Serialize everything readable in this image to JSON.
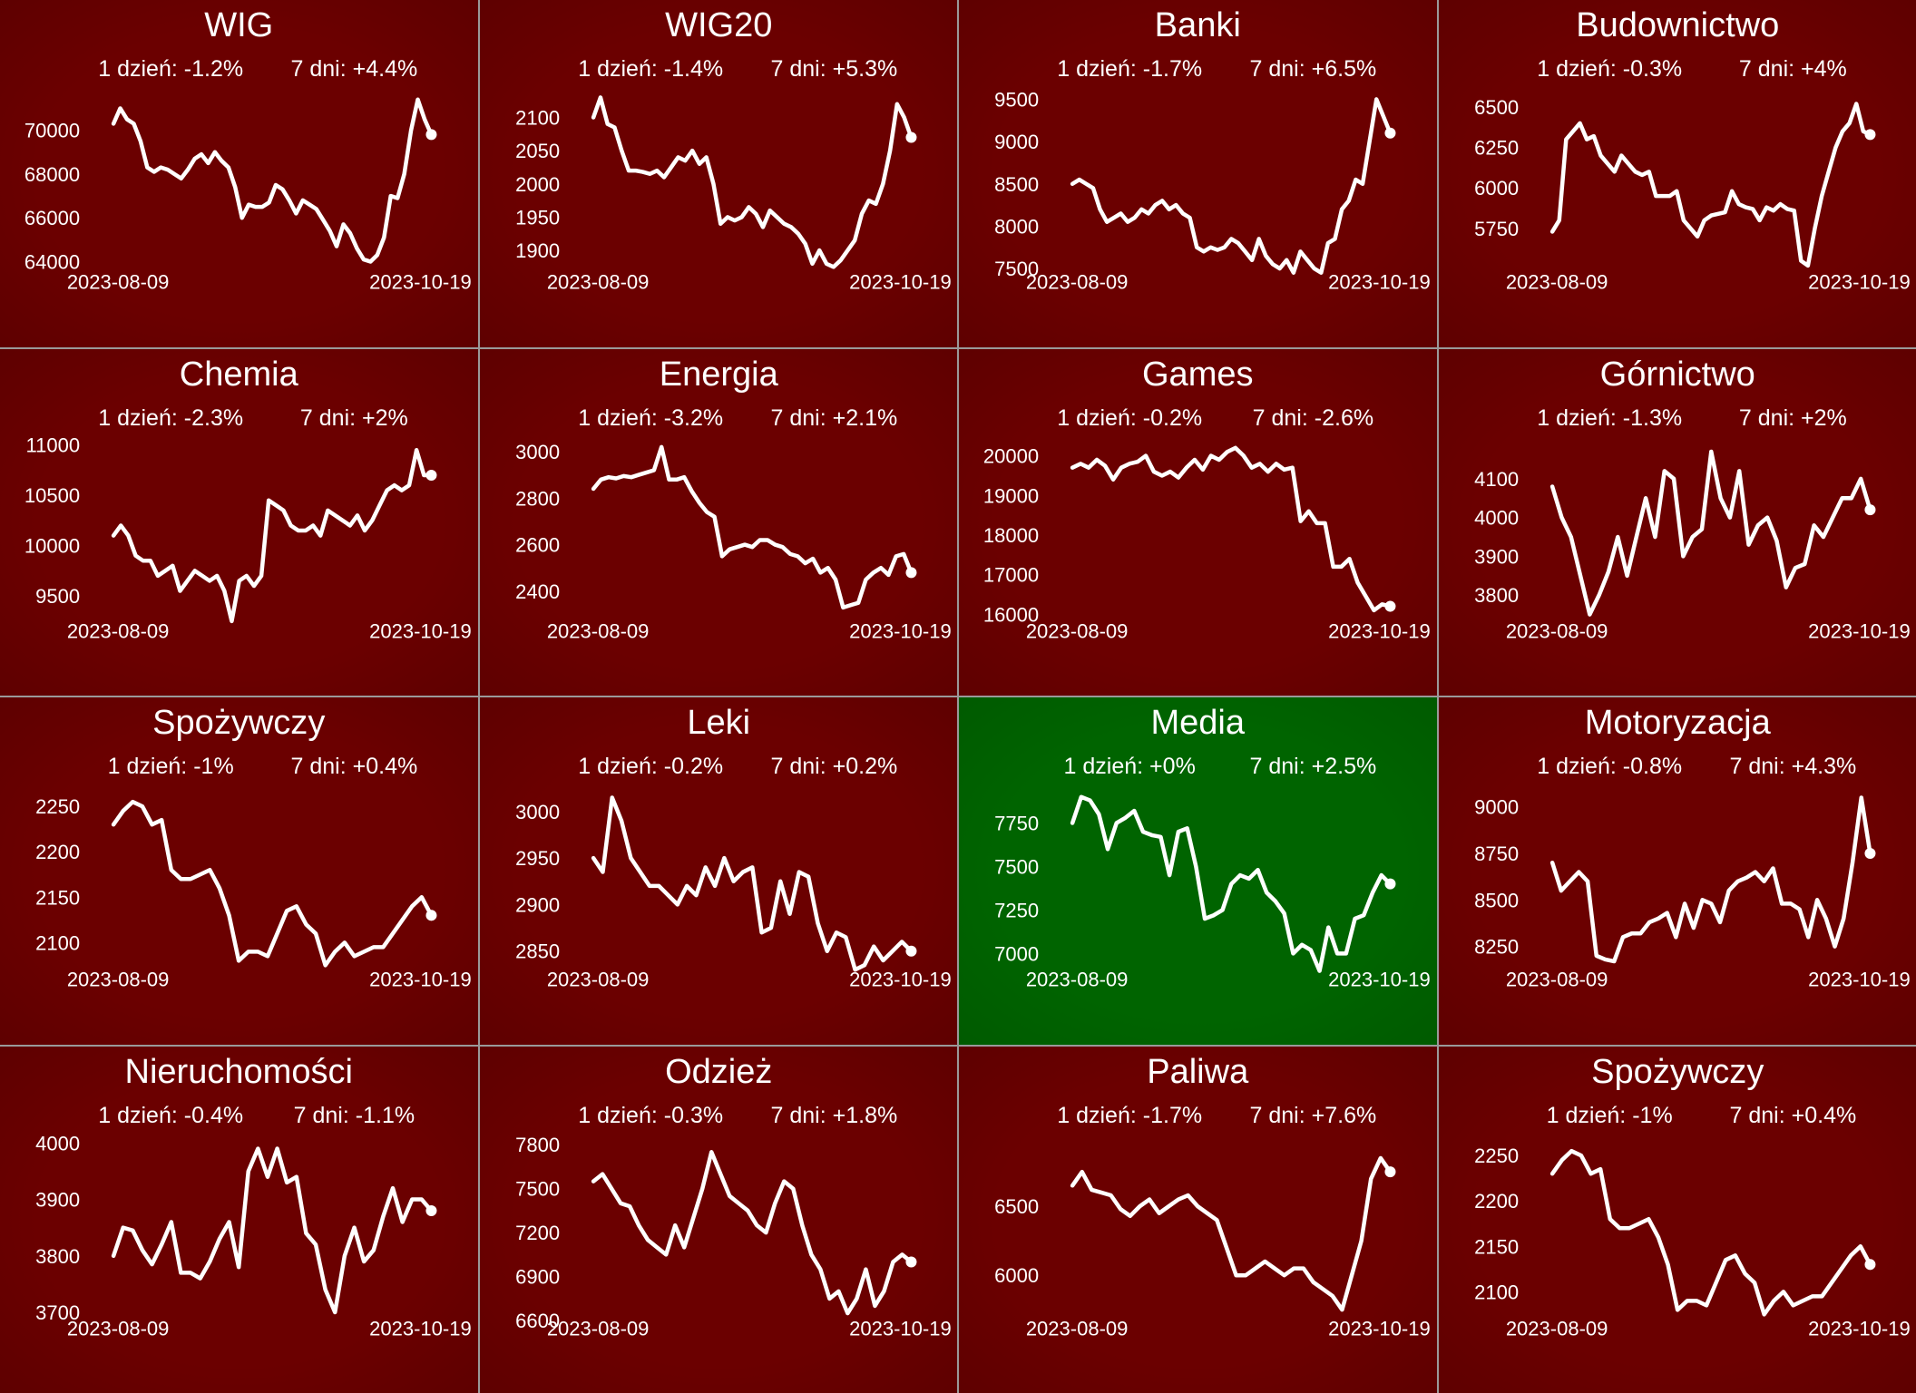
{
  "colors": {
    "up": "#006400",
    "down": "#6b0000",
    "line": "#ffffff",
    "border": "#9a9a9a"
  },
  "chart_data": [
    {
      "type": "line",
      "title": "WIG",
      "change_1d": "1 dzień: -1.2%",
      "change_7d": "7 dni: +4.4%",
      "x_start": "2023-08-09",
      "x_end": "2023-10-19",
      "yticks": [
        64000,
        66000,
        68000,
        70000
      ],
      "ylim": [
        63300,
        71800
      ],
      "trend": "down",
      "values": [
        70300,
        71000,
        70500,
        70300,
        69500,
        68300,
        68100,
        68300,
        68200,
        68000,
        67800,
        68200,
        68700,
        68900,
        68500,
        69000,
        68600,
        68300,
        67400,
        66000,
        66600,
        66500,
        66500,
        66700,
        67500,
        67300,
        66800,
        66200,
        66800,
        66600,
        66400,
        65900,
        65400,
        64700,
        65700,
        65300,
        64600,
        64100,
        64000,
        64300,
        65100,
        67000,
        66900,
        68000,
        70000,
        71400,
        70500,
        69800
      ]
    },
    {
      "type": "line",
      "title": "WIG20",
      "change_1d": "1 dzień: -1.4%",
      "change_7d": "7 dni: +5.3%",
      "x_start": "2023-08-09",
      "x_end": "2023-10-19",
      "yticks": [
        1900,
        1950,
        2000,
        2050,
        2100
      ],
      "ylim": [
        1860,
        2140
      ],
      "trend": "down",
      "values": [
        2100,
        2130,
        2090,
        2085,
        2050,
        2020,
        2020,
        2018,
        2015,
        2020,
        2010,
        2025,
        2040,
        2035,
        2050,
        2030,
        2040,
        2000,
        1940,
        1950,
        1945,
        1950,
        1965,
        1955,
        1935,
        1960,
        1950,
        1940,
        1935,
        1925,
        1910,
        1880,
        1900,
        1880,
        1875,
        1885,
        1900,
        1915,
        1955,
        1975,
        1970,
        2000,
        2050,
        2120,
        2100,
        2070
      ]
    },
    {
      "type": "line",
      "title": "Banki",
      "change_1d": "1 dzień: -1.7%",
      "change_7d": "7 dni: +6.5%",
      "x_start": "2023-08-09",
      "x_end": "2023-10-19",
      "yticks": [
        7500,
        8000,
        8500,
        9000,
        9500
      ],
      "ylim": [
        7400,
        9600
      ],
      "trend": "down",
      "values": [
        8500,
        8550,
        8500,
        8450,
        8200,
        8050,
        8100,
        8150,
        8050,
        8100,
        8200,
        8150,
        8250,
        8300,
        8200,
        8250,
        8150,
        8100,
        7750,
        7700,
        7750,
        7720,
        7750,
        7850,
        7800,
        7700,
        7600,
        7850,
        7650,
        7550,
        7500,
        7600,
        7450,
        7700,
        7600,
        7500,
        7450,
        7800,
        7850,
        8200,
        8300,
        8550,
        8500,
        9000,
        9500,
        9300,
        9100
      ]
    },
    {
      "type": "line",
      "title": "Budownictwo",
      "change_1d": "1 dzień: -0.3%",
      "change_7d": "7 dni: +4%",
      "x_start": "2023-08-09",
      "x_end": "2023-10-19",
      "yticks": [
        5750,
        6000,
        6250,
        6500
      ],
      "ylim": [
        5450,
        6600
      ],
      "trend": "down",
      "values": [
        5730,
        5800,
        6300,
        6350,
        6400,
        6300,
        6320,
        6200,
        6150,
        6100,
        6200,
        6150,
        6100,
        6080,
        6100,
        5950,
        5950,
        5950,
        5980,
        5800,
        5750,
        5700,
        5800,
        5830,
        5840,
        5850,
        5980,
        5900,
        5880,
        5870,
        5800,
        5880,
        5860,
        5900,
        5870,
        5860,
        5550,
        5520,
        5750,
        5950,
        6100,
        6250,
        6350,
        6400,
        6520,
        6350,
        6330
      ]
    },
    {
      "type": "line",
      "title": "Chemia",
      "change_1d": "1 dzień: -2.3%",
      "change_7d": "7 dni: +2%",
      "x_start": "2023-08-09",
      "x_end": "2023-10-19",
      "yticks": [
        9500,
        10000,
        10500,
        11000
      ],
      "ylim": [
        9200,
        11050
      ],
      "trend": "down",
      "values": [
        10100,
        10200,
        10100,
        9900,
        9850,
        9850,
        9700,
        9750,
        9800,
        9550,
        9650,
        9750,
        9700,
        9650,
        9700,
        9550,
        9250,
        9650,
        9700,
        9600,
        9700,
        10450,
        10400,
        10350,
        10200,
        10150,
        10150,
        10200,
        10100,
        10350,
        10300,
        10250,
        10200,
        10300,
        10150,
        10250,
        10400,
        10550,
        10600,
        10550,
        10600,
        10950,
        10700,
        10700
      ]
    },
    {
      "type": "line",
      "title": "Energia",
      "change_1d": "1 dzień: -3.2%",
      "change_7d": "7 dni: +2.1%",
      "x_start": "2023-08-09",
      "x_end": "2023-10-19",
      "yticks": [
        2400,
        2600,
        2800,
        3000
      ],
      "ylim": [
        2250,
        3050
      ],
      "trend": "down",
      "values": [
        2840,
        2880,
        2890,
        2885,
        2895,
        2890,
        2900,
        2910,
        2920,
        3020,
        2880,
        2880,
        2890,
        2830,
        2780,
        2740,
        2720,
        2550,
        2580,
        2590,
        2600,
        2590,
        2620,
        2620,
        2600,
        2590,
        2560,
        2550,
        2520,
        2540,
        2480,
        2500,
        2450,
        2330,
        2340,
        2350,
        2450,
        2480,
        2500,
        2470,
        2550,
        2560,
        2480
      ]
    },
    {
      "type": "line",
      "title": "Games",
      "change_1d": "1 dzień: -0.2%",
      "change_7d": "7 dni: -2.6%",
      "x_start": "2023-08-09",
      "x_end": "2023-10-19",
      "yticks": [
        16000,
        17000,
        18000,
        19000,
        20000
      ],
      "ylim": [
        15700,
        20400
      ],
      "trend": "down",
      "values": [
        19700,
        19800,
        19700,
        19900,
        19750,
        19400,
        19700,
        19800,
        19850,
        20000,
        19600,
        19500,
        19600,
        19450,
        19700,
        19900,
        19650,
        20000,
        19900,
        20100,
        20200,
        20000,
        19700,
        19800,
        19600,
        19800,
        19650,
        19700,
        18350,
        18600,
        18300,
        18300,
        17200,
        17200,
        17400,
        16800,
        16450,
        16100,
        16250,
        16200
      ]
    },
    {
      "type": "line",
      "title": "Górnictwo",
      "change_1d": "1 dzień: -1.3%",
      "change_7d": "7 dni: +2%",
      "x_start": "2023-08-09",
      "x_end": "2023-10-19",
      "yticks": [
        3800,
        3900,
        4000,
        4100
      ],
      "ylim": [
        3720,
        4200
      ],
      "trend": "down",
      "values": [
        4080,
        4000,
        3950,
        3850,
        3750,
        3800,
        3860,
        3950,
        3850,
        3950,
        4050,
        3950,
        4120,
        4100,
        3900,
        3950,
        3970,
        4170,
        4050,
        4000,
        4120,
        3930,
        3980,
        4000,
        3940,
        3820,
        3870,
        3880,
        3980,
        3950,
        4000,
        4050,
        4050,
        4100,
        4020
      ]
    },
    {
      "type": "line",
      "title": "Spożywczy",
      "change_1d": "1 dzień: -1%",
      "change_7d": "7 dni: +0.4%",
      "x_start": "2023-08-09",
      "x_end": "2023-10-19",
      "yticks": [
        2100,
        2150,
        2200,
        2250
      ],
      "ylim": [
        2065,
        2270
      ],
      "trend": "down",
      "values": [
        2230,
        2245,
        2255,
        2250,
        2230,
        2235,
        2180,
        2170,
        2170,
        2175,
        2180,
        2160,
        2130,
        2080,
        2090,
        2090,
        2085,
        2110,
        2135,
        2140,
        2120,
        2110,
        2075,
        2090,
        2100,
        2085,
        2090,
        2095,
        2095,
        2110,
        2125,
        2140,
        2150,
        2130
      ]
    },
    {
      "type": "line",
      "title": "Leki",
      "change_1d": "1 dzień: -0.2%",
      "change_7d": "7 dni: +0.2%",
      "x_start": "2023-08-09",
      "x_end": "2023-10-19",
      "yticks": [
        2850,
        2900,
        2950,
        3000
      ],
      "ylim": [
        2825,
        3025
      ],
      "trend": "down",
      "values": [
        2950,
        2935,
        3015,
        2990,
        2950,
        2935,
        2920,
        2920,
        2910,
        2900,
        2920,
        2910,
        2940,
        2920,
        2950,
        2925,
        2935,
        2940,
        2870,
        2875,
        2925,
        2890,
        2935,
        2930,
        2880,
        2850,
        2870,
        2865,
        2830,
        2835,
        2855,
        2840,
        2850,
        2860,
        2850
      ]
    },
    {
      "type": "line",
      "title": "Media",
      "change_1d": "1 dzień: +0%",
      "change_7d": "7 dni: +2.5%",
      "x_start": "2023-08-09",
      "x_end": "2023-10-19",
      "yticks": [
        7000,
        7250,
        7500,
        7750
      ],
      "ylim": [
        6880,
        7950
      ],
      "trend": "up",
      "values": [
        7750,
        7900,
        7880,
        7800,
        7600,
        7750,
        7780,
        7820,
        7700,
        7680,
        7670,
        7450,
        7700,
        7720,
        7500,
        7200,
        7220,
        7250,
        7400,
        7450,
        7430,
        7480,
        7350,
        7300,
        7230,
        7000,
        7050,
        7020,
        6900,
        7150,
        7000,
        7000,
        7200,
        7220,
        7350,
        7450,
        7400
      ]
    },
    {
      "type": "line",
      "title": "Motoryzacja",
      "change_1d": "1 dzień: -0.8%",
      "change_7d": "7 dni: +4.3%",
      "x_start": "2023-08-09",
      "x_end": "2023-10-19",
      "yticks": [
        8250,
        8500,
        8750,
        9000
      ],
      "ylim": [
        8100,
        9100
      ],
      "trend": "down",
      "values": [
        8700,
        8550,
        8600,
        8650,
        8600,
        8200,
        8180,
        8170,
        8300,
        8320,
        8320,
        8380,
        8400,
        8430,
        8300,
        8480,
        8350,
        8500,
        8480,
        8380,
        8550,
        8600,
        8620,
        8650,
        8600,
        8670,
        8480,
        8480,
        8450,
        8300,
        8500,
        8400,
        8250,
        8400,
        8700,
        9050,
        8750
      ]
    },
    {
      "type": "line",
      "title": "Nieruchomości",
      "change_1d": "1 dzień: -0.4%",
      "change_7d": "7 dni: -1.1%",
      "x_start": "2023-08-09",
      "x_end": "2023-10-19",
      "yticks": [
        3700,
        3800,
        3900,
        4000
      ],
      "ylim": [
        3680,
        4010
      ],
      "trend": "down",
      "values": [
        3800,
        3850,
        3845,
        3810,
        3785,
        3820,
        3860,
        3770,
        3770,
        3760,
        3790,
        3830,
        3860,
        3780,
        3950,
        3990,
        3940,
        3990,
        3930,
        3940,
        3840,
        3820,
        3740,
        3700,
        3800,
        3850,
        3790,
        3810,
        3870,
        3920,
        3860,
        3900,
        3900,
        3880
      ]
    },
    {
      "type": "line",
      "title": "Odzież",
      "change_1d": "1 dzień: -0.3%",
      "change_7d": "7 dni: +1.8%",
      "x_start": "2023-08-09",
      "x_end": "2023-10-19",
      "yticks": [
        6600,
        6900,
        7200,
        7500,
        7800
      ],
      "ylim": [
        6580,
        7850
      ],
      "trend": "down",
      "values": [
        7550,
        7600,
        7500,
        7400,
        7380,
        7250,
        7150,
        7100,
        7050,
        7250,
        7100,
        7300,
        7500,
        7750,
        7600,
        7450,
        7400,
        7350,
        7250,
        7200,
        7400,
        7550,
        7500,
        7250,
        7050,
        6950,
        6750,
        6800,
        6650,
        6750,
        6950,
        6700,
        6800,
        7000,
        7050,
        7000
      ]
    },
    {
      "type": "line",
      "title": "Paliwa",
      "change_1d": "1 dzień: -1.7%",
      "change_7d": "7 dni: +7.6%",
      "x_start": "2023-08-09",
      "x_end": "2023-10-19",
      "yticks": [
        6000,
        6500
      ],
      "ylim": [
        5650,
        7000
      ],
      "trend": "down",
      "values": [
        6650,
        6750,
        6620,
        6600,
        6580,
        6480,
        6430,
        6500,
        6550,
        6450,
        6500,
        6550,
        6580,
        6500,
        6450,
        6400,
        6200,
        6000,
        6000,
        6050,
        6100,
        6050,
        6000,
        6050,
        6050,
        5950,
        5900,
        5850,
        5750,
        6000,
        6250,
        6700,
        6850,
        6750
      ]
    },
    {
      "type": "line",
      "title": "Spożywczy",
      "change_1d": "1 dzień: -1%",
      "change_7d": "7 dni: +0.4%",
      "x_start": "2023-08-09",
      "x_end": "2023-10-19",
      "yticks": [
        2100,
        2150,
        2200,
        2250
      ],
      "ylim": [
        2065,
        2270
      ],
      "trend": "down",
      "values": [
        2230,
        2245,
        2255,
        2250,
        2230,
        2235,
        2180,
        2170,
        2170,
        2175,
        2180,
        2160,
        2130,
        2080,
        2090,
        2090,
        2085,
        2110,
        2135,
        2140,
        2120,
        2110,
        2075,
        2090,
        2100,
        2085,
        2090,
        2095,
        2095,
        2110,
        2125,
        2140,
        2150,
        2130
      ]
    }
  ]
}
